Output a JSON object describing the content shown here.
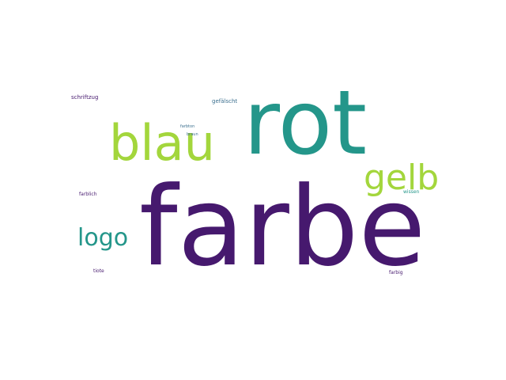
{
  "words": [
    {
      "id": "farbe",
      "text": "farbe",
      "color": "#46196e"
    },
    {
      "id": "rot",
      "text": "rot",
      "color": "#24968a"
    },
    {
      "id": "blau",
      "text": "blau",
      "color": "#a3d63c"
    },
    {
      "id": "gelb",
      "text": "gelb",
      "color": "#a3d63c"
    },
    {
      "id": "logo",
      "text": "logo",
      "color": "#24968a"
    },
    {
      "id": "schriftzug",
      "text": "schriftzug",
      "color": "#46196e"
    },
    {
      "id": "gefalscht",
      "text": "gefälscht",
      "color": "#3b6f8e"
    },
    {
      "id": "farbton",
      "text": "farbton",
      "color": "#3b6f8e"
    },
    {
      "id": "braun",
      "text": "braun",
      "color": "#3b6f8e"
    },
    {
      "id": "farblich",
      "text": "farblich",
      "color": "#46196e"
    },
    {
      "id": "wissen",
      "text": "wissen",
      "color": "#24968a"
    },
    {
      "id": "tiote",
      "text": "tiote",
      "color": "#46196e"
    },
    {
      "id": "farbig",
      "text": "farbig",
      "color": "#46196e"
    }
  ]
}
